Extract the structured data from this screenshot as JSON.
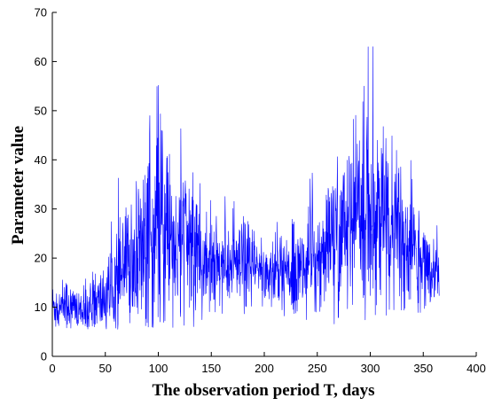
{
  "chart_data": {
    "type": "line",
    "title": "",
    "xlabel": "The observation period T, days",
    "ylabel": "Parameter value",
    "xlim": [
      0,
      400
    ],
    "ylim": [
      0,
      70
    ],
    "xticks": [
      "0",
      "50",
      "100",
      "150",
      "200",
      "250",
      "300",
      "350",
      "400"
    ],
    "yticks": [
      "0",
      "10",
      "20",
      "30",
      "40",
      "50",
      "60",
      "70"
    ],
    "grid": false,
    "legend": "none",
    "series": [
      {
        "color": "#0000ff",
        "x_range": [
          0,
          365
        ],
        "points_per_day": 4,
        "peak_annotations": [
          {
            "x": 92,
            "y": 49
          },
          {
            "x": 103,
            "y": 46
          },
          {
            "x": 294,
            "y": 55
          },
          {
            "x": 298,
            "y": 63
          }
        ],
        "baseline": {
          "x": [
            0,
            10,
            20,
            30,
            40,
            50,
            60,
            70,
            80,
            90,
            100,
            110,
            120,
            130,
            140,
            150,
            160,
            170,
            180,
            190,
            200,
            210,
            220,
            230,
            240,
            250,
            260,
            270,
            280,
            290,
            300,
            310,
            320,
            330,
            340,
            350,
            360,
            365
          ],
          "y": [
            10,
            11,
            10,
            9,
            10,
            12,
            15,
            18,
            20,
            23,
            25,
            24,
            23,
            22,
            20,
            19,
            19,
            18,
            18,
            18,
            17,
            17,
            17,
            18,
            18,
            20,
            22,
            24,
            26,
            28,
            29,
            28,
            26,
            24,
            21,
            19,
            17,
            17
          ]
        },
        "spread": {
          "x": [
            0,
            10,
            20,
            30,
            40,
            50,
            60,
            70,
            80,
            90,
            100,
            110,
            120,
            130,
            140,
            150,
            160,
            170,
            180,
            190,
            200,
            210,
            220,
            230,
            240,
            250,
            260,
            270,
            280,
            290,
            300,
            310,
            320,
            330,
            340,
            350,
            360,
            365
          ],
          "y": [
            2.5,
            3,
            2.5,
            2.5,
            3,
            4,
            5,
            6,
            8,
            10,
            10,
            9,
            9,
            8,
            6,
            5,
            5,
            4.5,
            4.5,
            4,
            4,
            4,
            4,
            4.5,
            5,
            6,
            7,
            8,
            9,
            10,
            10,
            9,
            8,
            7,
            6,
            5,
            4,
            4
          ]
        }
      }
    ]
  }
}
